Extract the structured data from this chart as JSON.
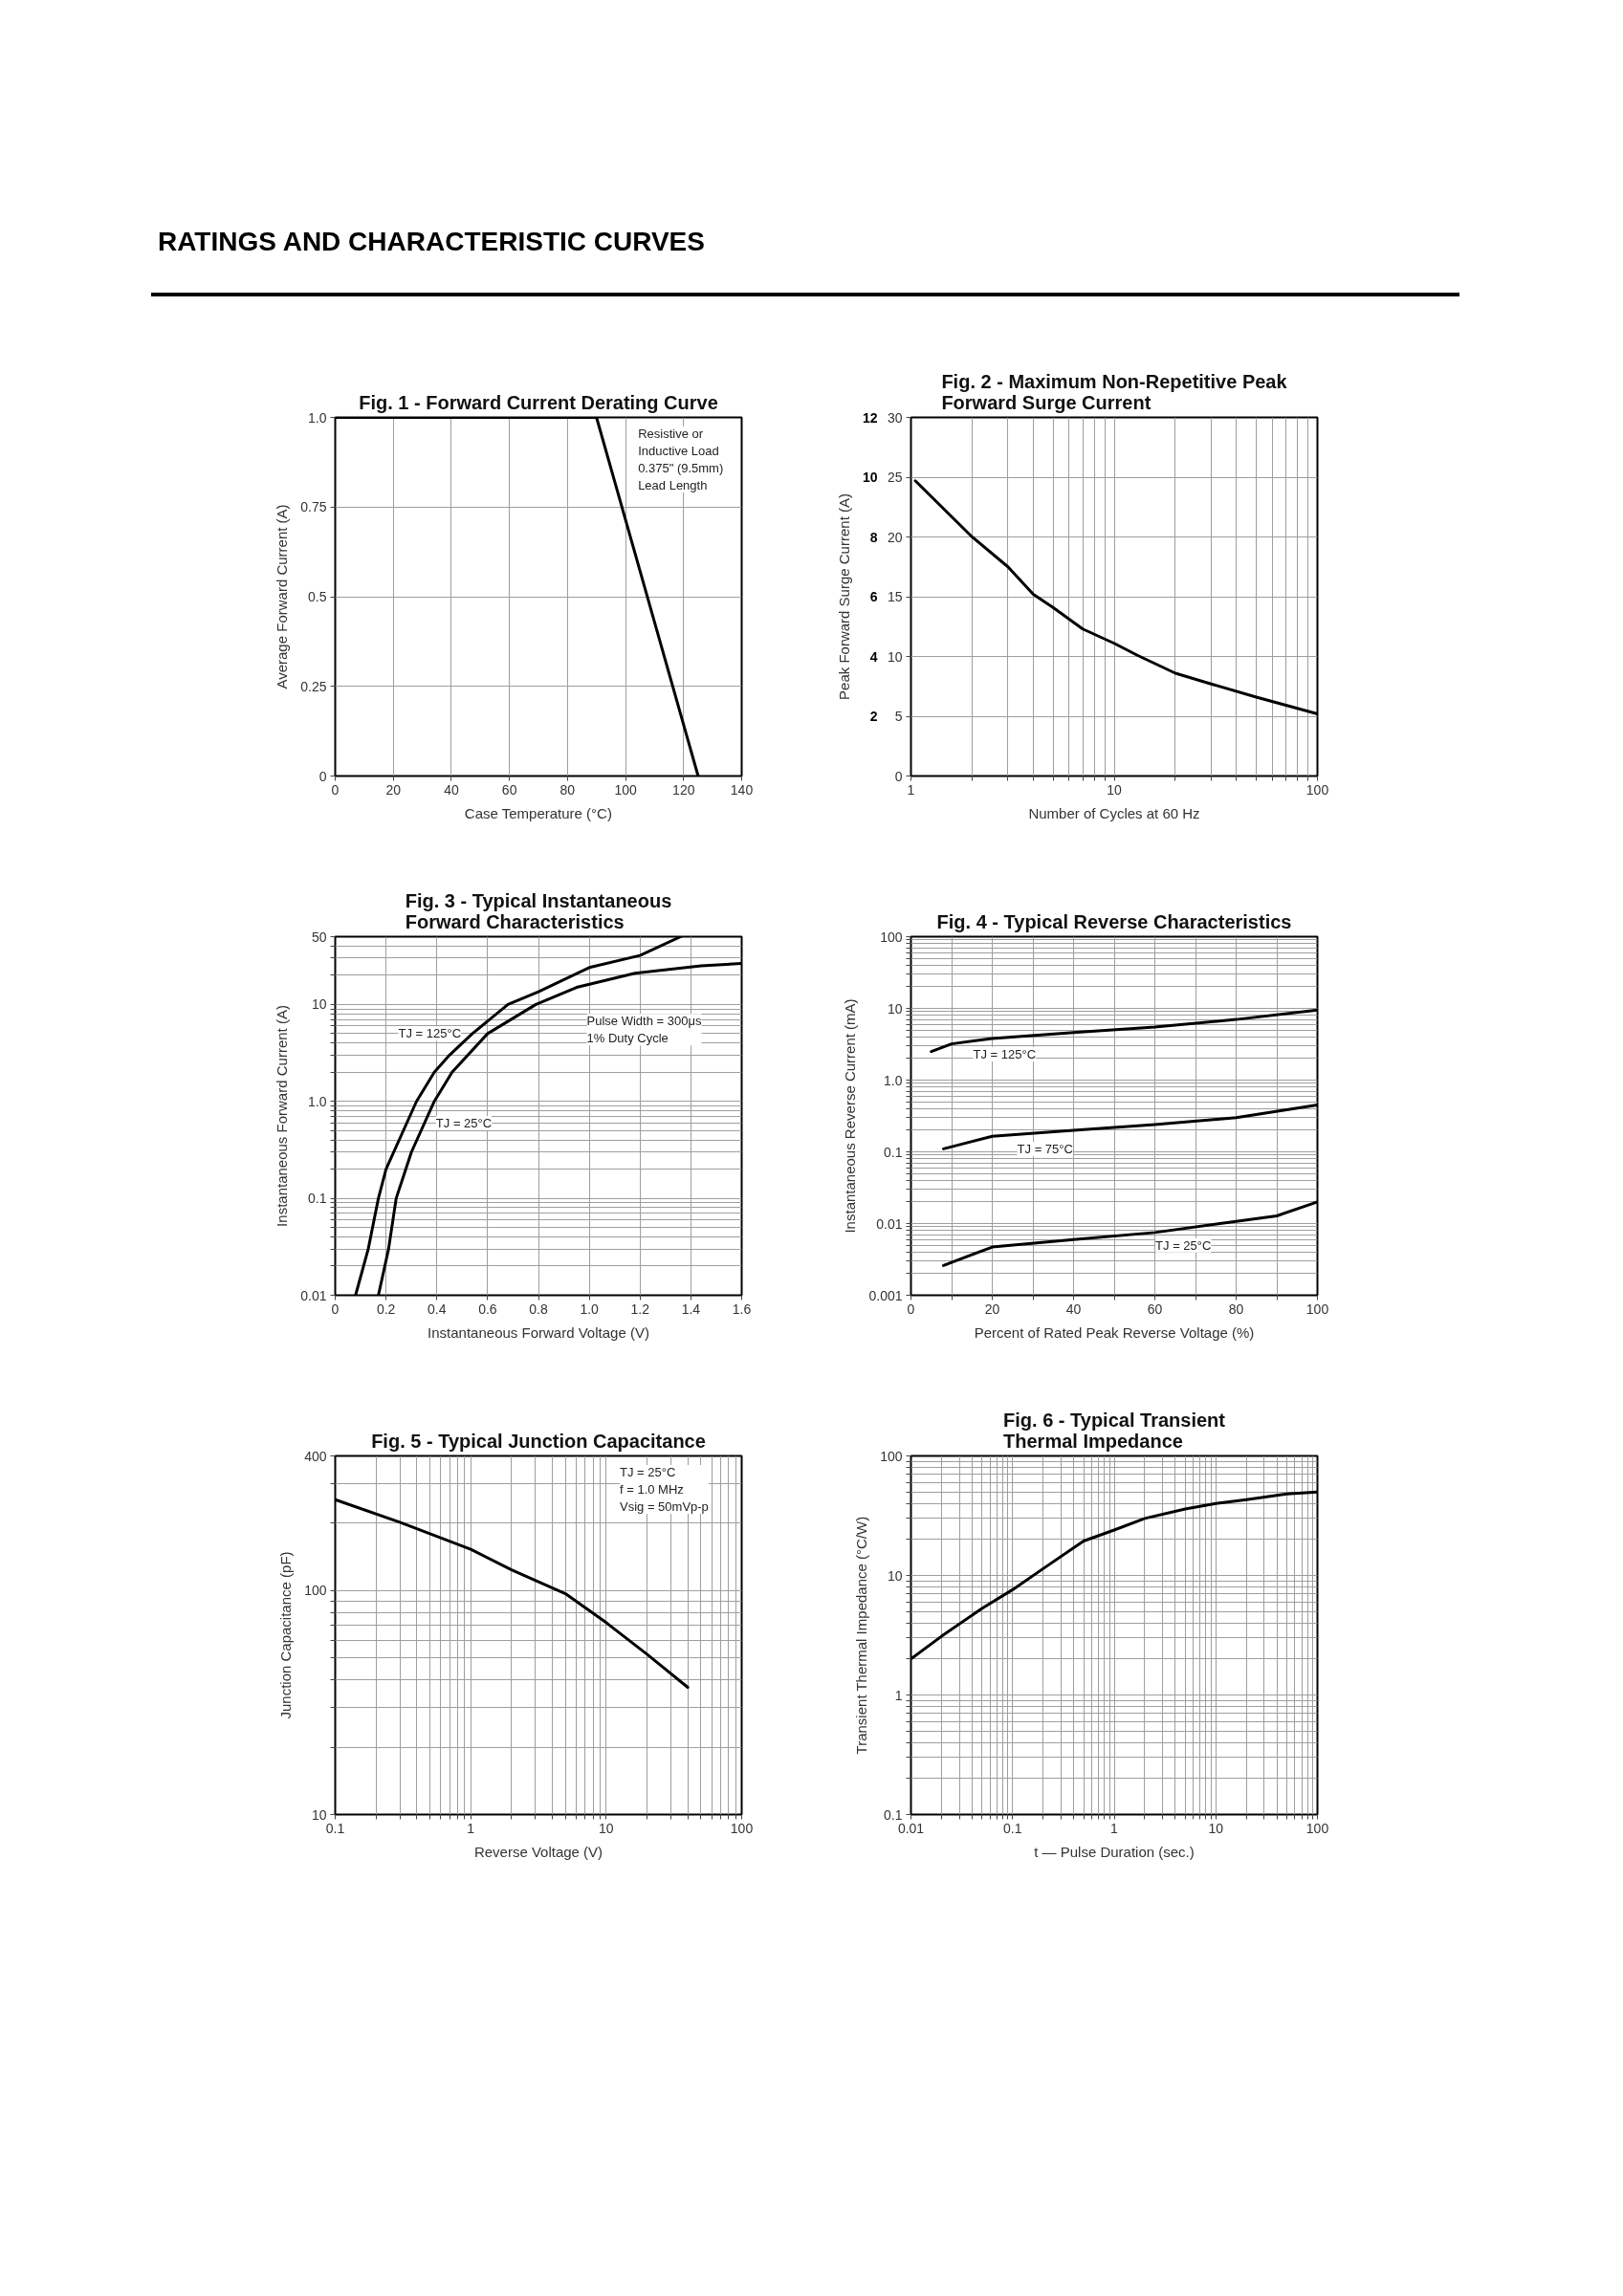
{
  "chart_data": [
    {
      "type": "other",
      "title": "RATINGS AND CHARACTERISTIC CURVES"
    },
    {
      "type": "line",
      "title": "Fig. 1 - Forward Current Derating Curve",
      "xlabel": "Case Temperature (°C)",
      "ylabel": "Average Forward Current (A)",
      "x": [
        0,
        90,
        125
      ],
      "series": [
        {
          "color": "#000000",
          "values": [
            1,
            1,
            0
          ]
        }
      ],
      "xlim": [
        0,
        140
      ],
      "ylim": [
        0,
        1
      ],
      "xticks": [
        0,
        20,
        40,
        60,
        80,
        100,
        120,
        140
      ],
      "yticks": [
        0,
        0.25,
        0.5,
        0.75,
        {
          "value": 1,
          "label": "1.0"
        }
      ],
      "grid": true,
      "annotations": [
        "Resistive or\nInductive Load\n0.375\" (9.5mm)\nLead Length"
      ]
    },
    {
      "type": "line",
      "title": "Fig. 2 - Maximum Non-Repetitive Peak\nForward Surge Current",
      "xlabel": "Number of Cycles at 60 Hz",
      "y2label": "Peak Forward Surge Current (A)",
      "log": "x",
      "x": [
        1.05,
        2,
        3,
        4,
        5,
        7,
        10,
        13,
        20,
        30,
        50,
        100
      ],
      "series": [
        {
          "color": "#000000",
          "values": [
            24.7,
            20,
            17.5,
            15.2,
            14.1,
            12.3,
            11.1,
            10.1,
            8.6,
            7.7,
            6.6,
            5.2
          ]
        }
      ],
      "xlim": [
        1,
        100
      ],
      "ylim": [
        0,
        30
      ],
      "xticks": [
        1,
        {
          "value": 2,
          "label": null
        },
        {
          "value": 3,
          "label": null
        },
        {
          "value": 4,
          "label": null
        },
        {
          "value": 5,
          "label": null
        },
        {
          "value": 6,
          "label": null
        },
        {
          "value": 7,
          "label": null
        },
        {
          "value": 8,
          "label": null
        },
        {
          "value": 9,
          "label": null
        },
        10,
        {
          "value": 20,
          "label": null
        },
        {
          "value": 30,
          "label": null
        },
        {
          "value": 40,
          "label": null
        },
        {
          "value": 50,
          "label": null
        },
        {
          "value": 60,
          "label": null
        },
        {
          "value": 70,
          "label": null
        },
        {
          "value": 80,
          "label": null
        },
        {
          "value": 90,
          "label": null
        },
        100
      ],
      "yticks": [
        0,
        5,
        10,
        15,
        20,
        25,
        30
      ],
      "y2lim": [
        0,
        12
      ],
      "y2ticks": [
        2,
        4,
        6,
        8,
        10,
        12
      ],
      "grid": true
    },
    {
      "type": "line",
      "title": "Fig. 3 - Typical Instantaneous\nForward Characteristics",
      "xlabel": "Instantaneous Forward Voltage (V)",
      "ylabel": "Instantaneous Forward Current (A)",
      "log": "y",
      "series": [
        {
          "name": "TJ = 125°C",
          "color": "#000000",
          "x": [
            0.08,
            0.13,
            0.17,
            0.2,
            0.32,
            0.39,
            0.45,
            0.54,
            0.68,
            0.8,
            1.0,
            1.2,
            1.36
          ],
          "values": [
            0.01,
            0.03,
            0.1,
            0.2,
            1,
            2,
            3,
            5,
            10,
            13.5,
            24,
            32,
            50
          ]
        },
        {
          "name": "TJ = 25°C",
          "color": "#000000",
          "x": [
            0.17,
            0.21,
            0.24,
            0.3,
            0.39,
            0.46,
            0.6,
            0.79,
            0.95,
            1.18,
            1.44,
            1.6
          ],
          "values": [
            0.01,
            0.03,
            0.1,
            0.3,
            1,
            2,
            5,
            10,
            15,
            21,
            25,
            26.5
          ]
        }
      ],
      "xlim": [
        0,
        1.6
      ],
      "ylim": [
        0.01,
        50
      ],
      "xticks": [
        0,
        0.2,
        0.4,
        0.6,
        0.8,
        {
          "value": 1,
          "label": "1.0"
        },
        1.2,
        1.4,
        1.6
      ],
      "yticks": [
        0.01,
        {
          "value": 0.02,
          "label": null
        },
        {
          "value": 0.03,
          "label": null
        },
        {
          "value": 0.04,
          "label": null
        },
        {
          "value": 0.05,
          "label": null
        },
        {
          "value": 0.06,
          "label": null
        },
        {
          "value": 0.07,
          "label": null
        },
        {
          "value": 0.08,
          "label": null
        },
        {
          "value": 0.09,
          "label": null
        },
        0.1,
        {
          "value": 0.2,
          "label": null
        },
        {
          "value": 0.3,
          "label": null
        },
        {
          "value": 0.4,
          "label": null
        },
        {
          "value": 0.5,
          "label": null
        },
        {
          "value": 0.6,
          "label": null
        },
        {
          "value": 0.7,
          "label": null
        },
        {
          "value": 0.8,
          "label": null
        },
        {
          "value": 0.9,
          "label": null
        },
        {
          "value": 1,
          "label": "1.0"
        },
        {
          "value": 2,
          "label": null
        },
        {
          "value": 3,
          "label": null
        },
        {
          "value": 4,
          "label": null
        },
        {
          "value": 5,
          "label": null
        },
        {
          "value": 6,
          "label": null
        },
        {
          "value": 7,
          "label": null
        },
        {
          "value": 8,
          "label": null
        },
        {
          "value": 9,
          "label": null
        },
        10,
        {
          "value": 20,
          "label": null
        },
        {
          "value": 30,
          "label": null
        },
        {
          "value": 40,
          "label": null
        },
        50
      ],
      "grid": true,
      "annotations": [
        "Pulse Width = 300μs\n1% Duty Cycle"
      ]
    },
    {
      "type": "line",
      "title": "Fig. 4 - Typical Reverse Characteristics",
      "xlabel": "Percent of Rated Peak Reverse Voltage (%)",
      "ylabel": "Instantaneous Reverse Current (mA)",
      "log": "y",
      "series": [
        {
          "name": "TJ = 125°C",
          "color": "#000000",
          "x": [
            5,
            10,
            20,
            40,
            60,
            80,
            100
          ],
          "values": [
            2.5,
            3.2,
            3.8,
            4.6,
            5.5,
            7.0,
            9.5
          ]
        },
        {
          "name": "TJ = 75°C",
          "color": "#000000",
          "x": [
            8,
            20,
            40,
            60,
            80,
            100
          ],
          "values": [
            0.11,
            0.165,
            0.2,
            0.24,
            0.3,
            0.45
          ]
        },
        {
          "name": "TJ = 25°C",
          "color": "#000000",
          "x": [
            8,
            20,
            40,
            60,
            80,
            90,
            100
          ],
          "values": [
            0.0026,
            0.0047,
            0.006,
            0.0075,
            0.0107,
            0.0128,
            0.02
          ]
        }
      ],
      "xlim": [
        0,
        100
      ],
      "ylim": [
        0.001,
        100
      ],
      "xticks": [
        0,
        {
          "value": 10,
          "label": null
        },
        20,
        {
          "value": 30,
          "label": null
        },
        40,
        {
          "value": 50,
          "label": null
        },
        60,
        {
          "value": 70,
          "label": null
        },
        80,
        {
          "value": 90,
          "label": null
        },
        100
      ],
      "yticks": [
        0.001,
        {
          "value": 0.002,
          "label": null
        },
        {
          "value": 0.003,
          "label": null
        },
        {
          "value": 0.004,
          "label": null
        },
        {
          "value": 0.005,
          "label": null
        },
        {
          "value": 0.006,
          "label": null
        },
        {
          "value": 0.007,
          "label": null
        },
        {
          "value": 0.008,
          "label": null
        },
        {
          "value": 0.009,
          "label": null
        },
        0.01,
        {
          "value": 0.02,
          "label": null
        },
        {
          "value": 0.03,
          "label": null
        },
        {
          "value": 0.04,
          "label": null
        },
        {
          "value": 0.05,
          "label": null
        },
        {
          "value": 0.06,
          "label": null
        },
        {
          "value": 0.07,
          "label": null
        },
        {
          "value": 0.08,
          "label": null
        },
        {
          "value": 0.09,
          "label": null
        },
        0.1,
        {
          "value": 0.2,
          "label": null
        },
        {
          "value": 0.3,
          "label": null
        },
        {
          "value": 0.4,
          "label": null
        },
        {
          "value": 0.5,
          "label": null
        },
        {
          "value": 0.6,
          "label": null
        },
        {
          "value": 0.7,
          "label": null
        },
        {
          "value": 0.8,
          "label": null
        },
        {
          "value": 0.9,
          "label": null
        },
        {
          "value": 1,
          "label": "1.0"
        },
        {
          "value": 2,
          "label": null
        },
        {
          "value": 3,
          "label": null
        },
        {
          "value": 4,
          "label": null
        },
        {
          "value": 5,
          "label": null
        },
        {
          "value": 6,
          "label": null
        },
        {
          "value": 7,
          "label": null
        },
        {
          "value": 8,
          "label": null
        },
        {
          "value": 9,
          "label": null
        },
        10,
        {
          "value": 20,
          "label": null
        },
        {
          "value": 30,
          "label": null
        },
        {
          "value": 40,
          "label": null
        },
        {
          "value": 50,
          "label": null
        },
        {
          "value": 60,
          "label": null
        },
        {
          "value": 70,
          "label": null
        },
        {
          "value": 80,
          "label": null
        },
        {
          "value": 90,
          "label": null
        },
        100
      ],
      "grid": true
    },
    {
      "type": "line",
      "title": "Fig. 5 - Typical Junction Capacitance",
      "xlabel": "Reverse Voltage (V)",
      "ylabel": "Junction Capacitance (pF)",
      "log": "xy",
      "x": [
        0.1,
        0.3,
        1,
        2,
        5,
        10,
        20,
        40
      ],
      "series": [
        {
          "color": "#000000",
          "values": [
            255,
            202,
            153,
            124,
            97,
            72,
            52,
            37
          ]
        }
      ],
      "xlim": [
        0.1,
        100
      ],
      "ylim": [
        10,
        400
      ],
      "xticks": [
        0.1,
        {
          "value": 0.2,
          "label": null
        },
        {
          "value": 0.3,
          "label": null
        },
        {
          "value": 0.4,
          "label": null
        },
        {
          "value": 0.5,
          "label": null
        },
        {
          "value": 0.6,
          "label": null
        },
        {
          "value": 0.7,
          "label": null
        },
        {
          "value": 0.8,
          "label": null
        },
        {
          "value": 0.9,
          "label": null
        },
        1,
        {
          "value": 2,
          "label": null
        },
        {
          "value": 3,
          "label": null
        },
        {
          "value": 4,
          "label": null
        },
        {
          "value": 5,
          "label": null
        },
        {
          "value": 6,
          "label": null
        },
        {
          "value": 7,
          "label": null
        },
        {
          "value": 8,
          "label": null
        },
        {
          "value": 9,
          "label": null
        },
        10,
        {
          "value": 20,
          "label": null
        },
        {
          "value": 30,
          "label": null
        },
        {
          "value": 40,
          "label": null
        },
        {
          "value": 50,
          "label": null
        },
        {
          "value": 60,
          "label": null
        },
        {
          "value": 70,
          "label": null
        },
        {
          "value": 80,
          "label": null
        },
        {
          "value": 90,
          "label": null
        },
        100
      ],
      "yticks": [
        10,
        {
          "value": 20,
          "label": null
        },
        {
          "value": 30,
          "label": null
        },
        {
          "value": 40,
          "label": null
        },
        {
          "value": 50,
          "label": null
        },
        {
          "value": 60,
          "label": null
        },
        {
          "value": 70,
          "label": null
        },
        {
          "value": 80,
          "label": null
        },
        {
          "value": 90,
          "label": null
        },
        100,
        {
          "value": 200,
          "label": null
        },
        {
          "value": 300,
          "label": null
        },
        400
      ],
      "grid": true,
      "annotations": [
        "TJ = 25°C\nf = 1.0 MHz\nVsig = 50mVp-p"
      ]
    },
    {
      "type": "line",
      "title": "Fig. 6 - Typical Transient\nThermal Impedance",
      "xlabel": "t — Pulse Duration (sec.)",
      "ylabel": "Transient Thermal Impedance (°C/W)",
      "log": "xy",
      "x": [
        0.01,
        0.02,
        0.05,
        0.1,
        0.2,
        0.5,
        1,
        2,
        5,
        10,
        20,
        50,
        100
      ],
      "series": [
        {
          "color": "#000000",
          "values": [
            2,
            3.1,
            5.3,
            7.6,
            11.4,
            19.4,
            24,
            30,
            36,
            40,
            43,
            48,
            50
          ]
        }
      ],
      "xlim": [
        0.01,
        100
      ],
      "ylim": [
        0.1,
        100
      ],
      "xticks": [
        0.01,
        {
          "value": 0.02,
          "label": null
        },
        {
          "value": 0.03,
          "label": null
        },
        {
          "value": 0.04,
          "label": null
        },
        {
          "value": 0.05,
          "label": null
        },
        {
          "value": 0.06,
          "label": null
        },
        {
          "value": 0.07,
          "label": null
        },
        {
          "value": 0.08,
          "label": null
        },
        {
          "value": 0.09,
          "label": null
        },
        0.1,
        {
          "value": 0.2,
          "label": null
        },
        {
          "value": 0.3,
          "label": null
        },
        {
          "value": 0.4,
          "label": null
        },
        {
          "value": 0.5,
          "label": null
        },
        {
          "value": 0.6,
          "label": null
        },
        {
          "value": 0.7,
          "label": null
        },
        {
          "value": 0.8,
          "label": null
        },
        {
          "value": 0.9,
          "label": null
        },
        1,
        {
          "value": 2,
          "label": null
        },
        {
          "value": 3,
          "label": null
        },
        {
          "value": 4,
          "label": null
        },
        {
          "value": 5,
          "label": null
        },
        {
          "value": 6,
          "label": null
        },
        {
          "value": 7,
          "label": null
        },
        {
          "value": 8,
          "label": null
        },
        {
          "value": 9,
          "label": null
        },
        10,
        {
          "value": 20,
          "label": null
        },
        {
          "value": 30,
          "label": null
        },
        {
          "value": 40,
          "label": null
        },
        {
          "value": 50,
          "label": null
        },
        {
          "value": 60,
          "label": null
        },
        {
          "value": 70,
          "label": null
        },
        {
          "value": 80,
          "label": null
        },
        {
          "value": 90,
          "label": null
        },
        100
      ],
      "yticks": [
        0.1,
        {
          "value": 0.2,
          "label": null
        },
        {
          "value": 0.3,
          "label": null
        },
        {
          "value": 0.4,
          "label": null
        },
        {
          "value": 0.5,
          "label": null
        },
        {
          "value": 0.6,
          "label": null
        },
        {
          "value": 0.7,
          "label": null
        },
        {
          "value": 0.8,
          "label": null
        },
        {
          "value": 0.9,
          "label": null
        },
        1,
        {
          "value": 2,
          "label": null
        },
        {
          "value": 3,
          "label": null
        },
        {
          "value": 4,
          "label": null
        },
        {
          "value": 5,
          "label": null
        },
        {
          "value": 6,
          "label": null
        },
        {
          "value": 7,
          "label": null
        },
        {
          "value": 8,
          "label": null
        },
        {
          "value": 9,
          "label": null
        },
        10,
        {
          "value": 20,
          "label": null
        },
        {
          "value": 30,
          "label": null
        },
        {
          "value": 40,
          "label": null
        },
        {
          "value": 50,
          "label": null
        },
        {
          "value": 60,
          "label": null
        },
        {
          "value": 70,
          "label": null
        },
        {
          "value": 80,
          "label": null
        },
        {
          "value": 90,
          "label": null
        },
        100
      ],
      "grid": true
    }
  ]
}
